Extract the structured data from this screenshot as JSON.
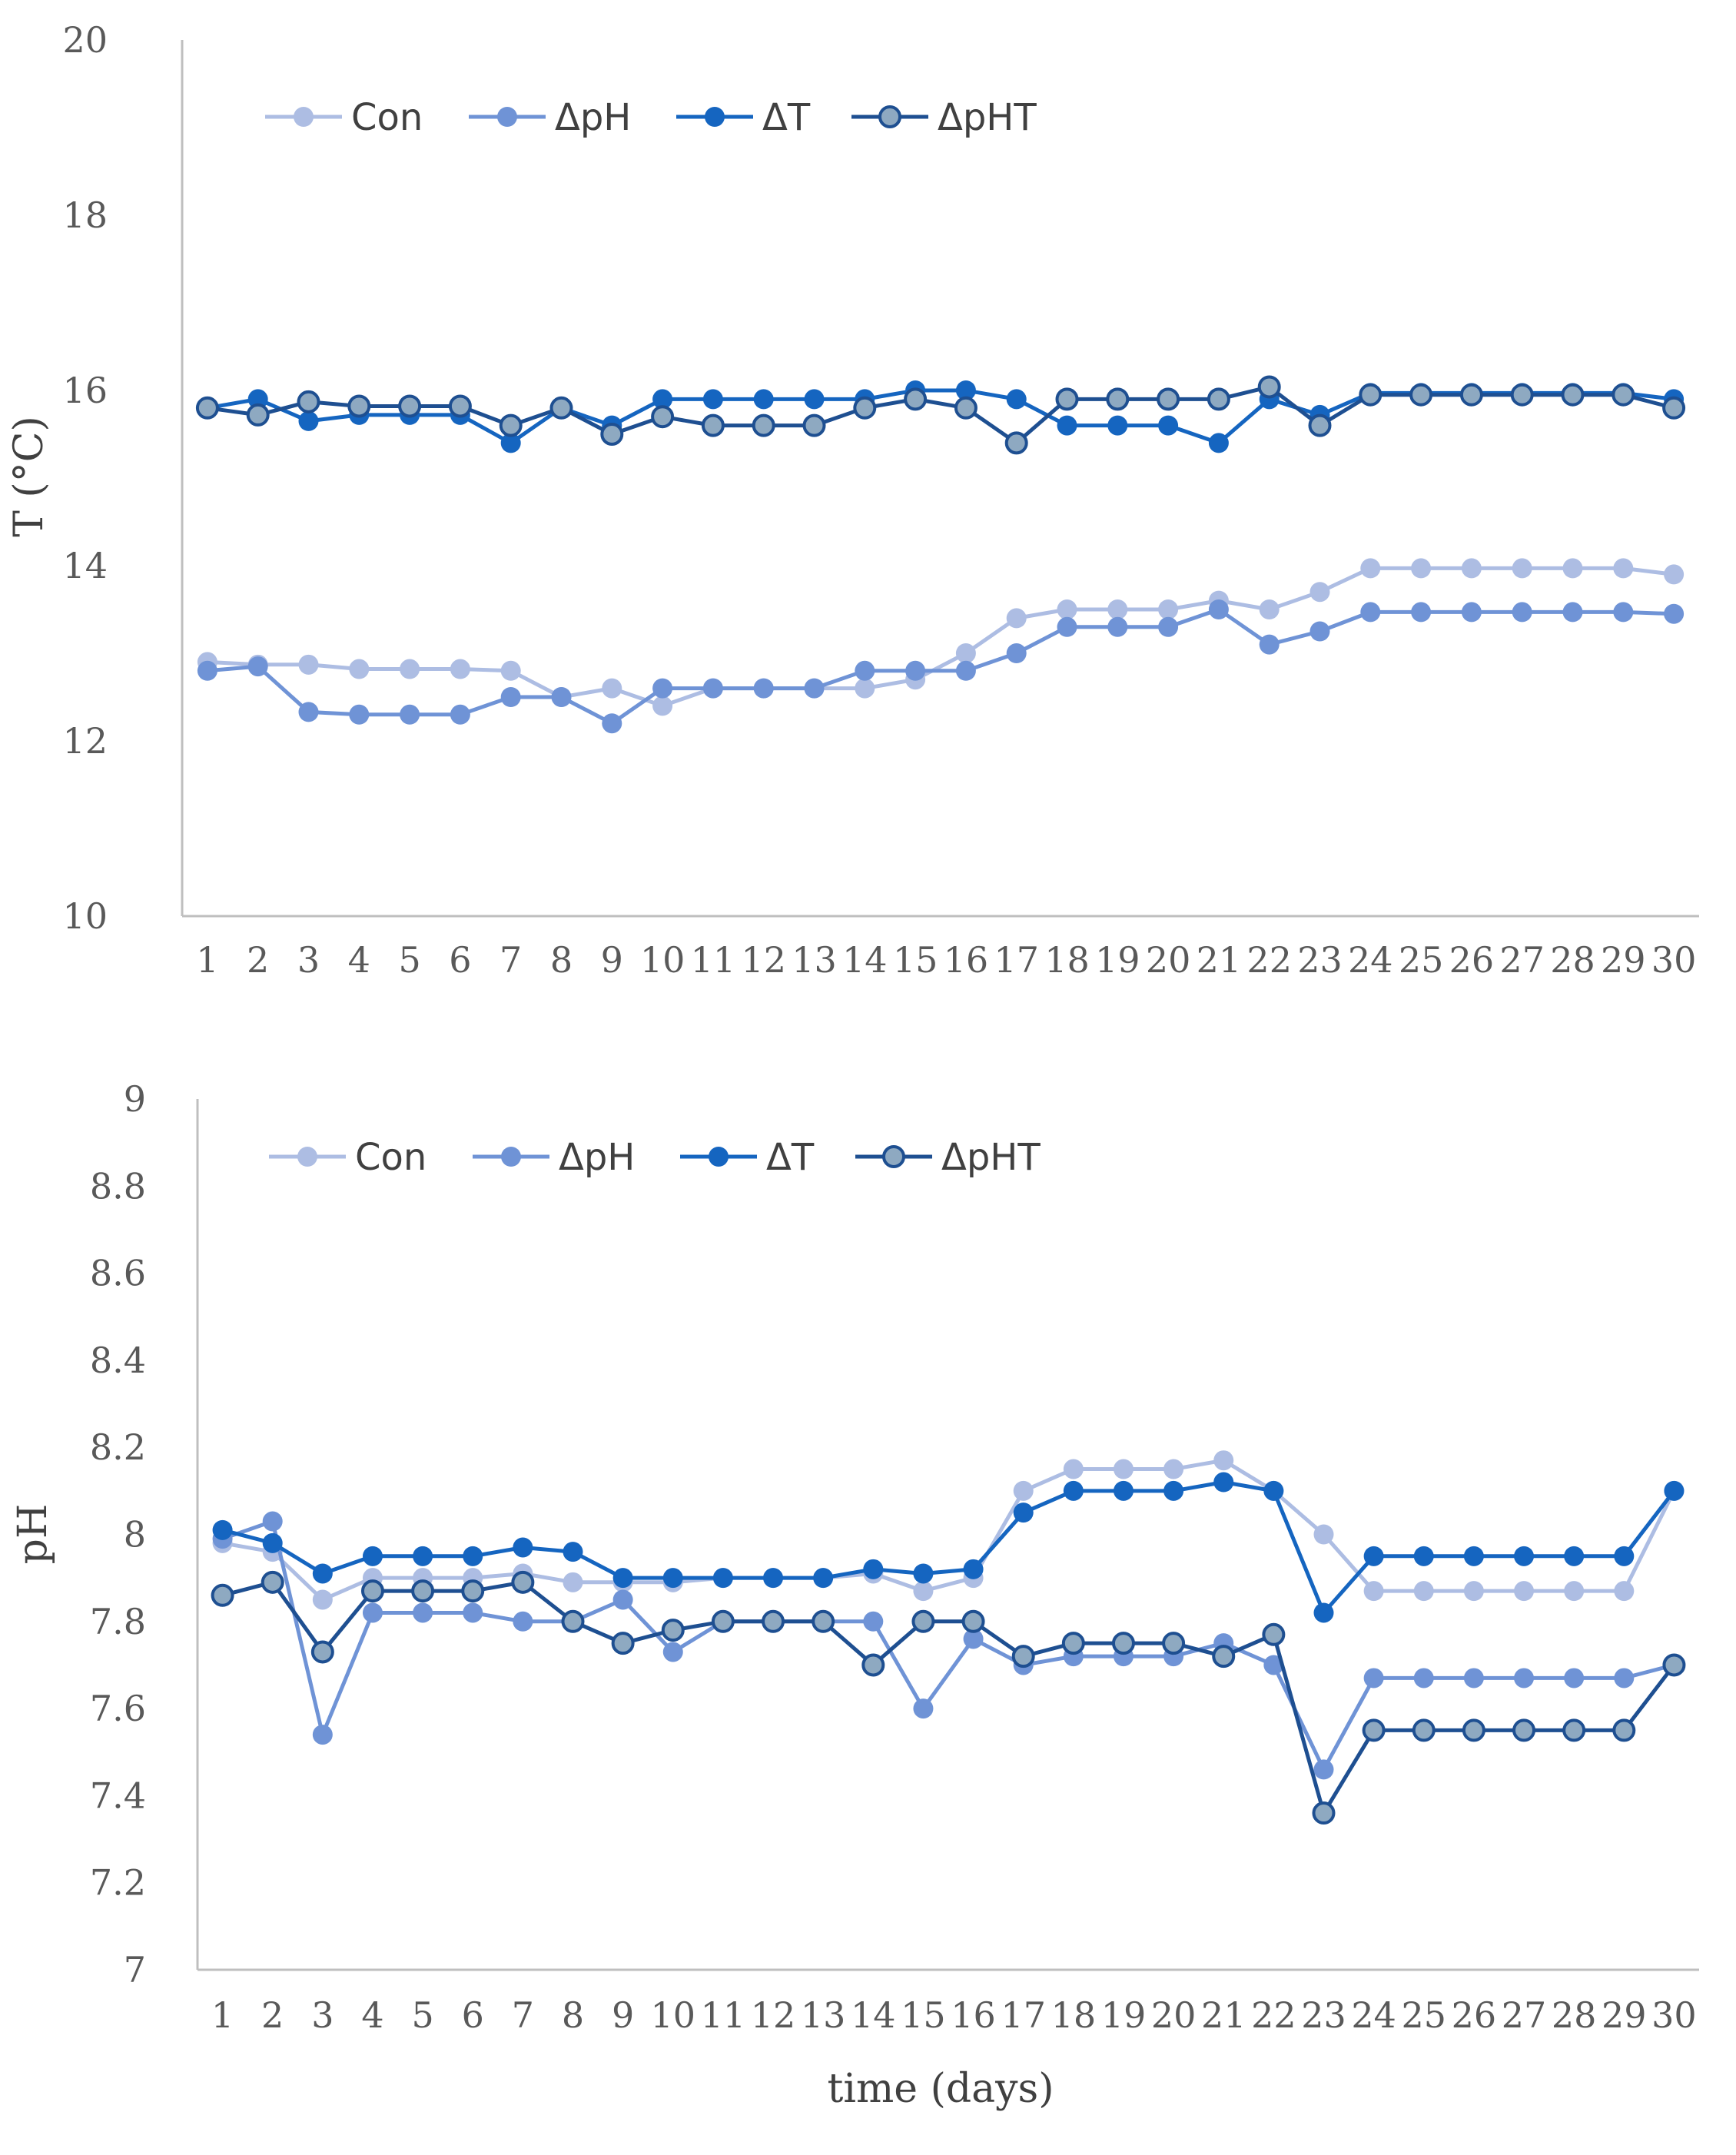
{
  "colors": {
    "Con": "#adbde3",
    "dpH": "#6f93d6",
    "dT": "#1565c0",
    "dpHT": "#1e4f91",
    "dpHT_marker": "#8ea9c1",
    "axis": "#bfbfbf"
  },
  "chart_data": [
    {
      "type": "line",
      "ylabel": "T (°C)",
      "xlabel": "",
      "ylim": [
        10,
        20
      ],
      "yticks": [
        "10",
        "12",
        "14",
        "16",
        "18",
        "20"
      ],
      "x": [
        "1",
        "2",
        "3",
        "4",
        "5",
        "6",
        "7",
        "8",
        "9",
        "10",
        "11",
        "12",
        "13",
        "14",
        "15",
        "16",
        "17",
        "18",
        "19",
        "20",
        "21",
        "22",
        "23",
        "24",
        "25",
        "26",
        "27",
        "28",
        "29",
        "30"
      ],
      "legend": [
        "Con",
        "ΔpH",
        "ΔT",
        "ΔpHT"
      ],
      "series": [
        {
          "name": "Con",
          "key": "Con",
          "values": [
            12.9,
            12.87,
            12.87,
            12.82,
            12.82,
            12.82,
            12.8,
            12.5,
            12.6,
            12.4,
            12.6,
            12.6,
            12.6,
            12.6,
            12.7,
            13.0,
            13.4,
            13.5,
            13.5,
            13.5,
            13.6,
            13.5,
            13.7,
            13.97,
            13.97,
            13.97,
            13.97,
            13.97,
            13.97,
            13.9
          ]
        },
        {
          "name": "ΔpH",
          "key": "dpH",
          "values": [
            12.8,
            12.85,
            12.33,
            12.3,
            12.3,
            12.3,
            12.5,
            12.5,
            12.2,
            12.6,
            12.6,
            12.6,
            12.6,
            12.8,
            12.8,
            12.8,
            13.0,
            13.3,
            13.3,
            13.3,
            13.5,
            13.1,
            13.25,
            13.47,
            13.47,
            13.47,
            13.47,
            13.47,
            13.47,
            13.45
          ]
        },
        {
          "name": "ΔT",
          "key": "dT",
          "values": [
            15.8,
            15.9,
            15.65,
            15.72,
            15.72,
            15.72,
            15.4,
            15.8,
            15.6,
            15.9,
            15.9,
            15.9,
            15.9,
            15.9,
            16.0,
            16.0,
            15.9,
            15.6,
            15.6,
            15.6,
            15.4,
            15.9,
            15.72,
            15.97,
            15.97,
            15.97,
            15.97,
            15.97,
            15.97,
            15.9
          ]
        },
        {
          "name": "ΔpHT",
          "key": "dpHT",
          "values": [
            15.8,
            15.72,
            15.87,
            15.82,
            15.82,
            15.82,
            15.6,
            15.8,
            15.5,
            15.7,
            15.6,
            15.6,
            15.6,
            15.8,
            15.9,
            15.8,
            15.4,
            15.9,
            15.9,
            15.9,
            15.9,
            16.04,
            15.6,
            15.95,
            15.95,
            15.95,
            15.95,
            15.95,
            15.95,
            15.8
          ]
        }
      ]
    },
    {
      "type": "line",
      "ylabel": "pH",
      "xlabel": "time (days)",
      "ylim": [
        7,
        9
      ],
      "yticks": [
        "7",
        "7.2",
        "7.4",
        "7.6",
        "7.8",
        "8",
        "8.2",
        "8.4",
        "8.6",
        "8.8",
        "9"
      ],
      "x": [
        "1",
        "2",
        "3",
        "4",
        "5",
        "6",
        "7",
        "8",
        "9",
        "10",
        "11",
        "12",
        "13",
        "14",
        "15",
        "16",
        "17",
        "18",
        "19",
        "20",
        "21",
        "22",
        "23",
        "24",
        "25",
        "26",
        "27",
        "28",
        "29",
        "30"
      ],
      "legend": [
        "Con",
        "ΔpH",
        "ΔT",
        "ΔpHT"
      ],
      "series": [
        {
          "name": "Con",
          "key": "Con",
          "values": [
            7.98,
            7.96,
            7.85,
            7.9,
            7.9,
            7.9,
            7.91,
            7.89,
            7.89,
            7.89,
            7.9,
            7.9,
            7.9,
            7.91,
            7.87,
            7.9,
            8.1,
            8.15,
            8.15,
            8.15,
            8.17,
            8.1,
            8.0,
            7.87,
            7.87,
            7.87,
            7.87,
            7.87,
            7.87,
            8.1
          ]
        },
        {
          "name": "ΔpH",
          "key": "dpH",
          "values": [
            7.99,
            8.03,
            7.54,
            7.82,
            7.82,
            7.82,
            7.8,
            7.8,
            7.85,
            7.73,
            7.8,
            7.8,
            7.8,
            7.8,
            7.6,
            7.76,
            7.7,
            7.72,
            7.72,
            7.72,
            7.75,
            7.7,
            7.46,
            7.67,
            7.67,
            7.67,
            7.67,
            7.67,
            7.67,
            7.7
          ]
        },
        {
          "name": "ΔT",
          "key": "dT",
          "values": [
            8.01,
            7.98,
            7.91,
            7.95,
            7.95,
            7.95,
            7.97,
            7.96,
            7.9,
            7.9,
            7.9,
            7.9,
            7.9,
            7.92,
            7.91,
            7.92,
            8.05,
            8.1,
            8.1,
            8.1,
            8.12,
            8.1,
            7.82,
            7.95,
            7.95,
            7.95,
            7.95,
            7.95,
            7.95,
            8.1
          ]
        },
        {
          "name": "ΔpHT",
          "key": "dpHT",
          "values": [
            7.86,
            7.89,
            7.73,
            7.87,
            7.87,
            7.87,
            7.89,
            7.8,
            7.75,
            7.78,
            7.8,
            7.8,
            7.8,
            7.7,
            7.8,
            7.8,
            7.72,
            7.75,
            7.75,
            7.75,
            7.72,
            7.77,
            7.36,
            7.55,
            7.55,
            7.55,
            7.55,
            7.55,
            7.55,
            7.7
          ]
        }
      ]
    }
  ]
}
